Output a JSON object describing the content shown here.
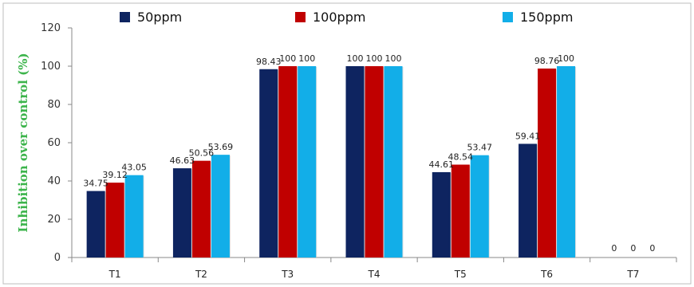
{
  "chart_data": {
    "type": "bar",
    "categories": [
      "T1",
      "T2",
      "T3",
      "T4",
      "T5",
      "T6",
      "T7"
    ],
    "series": [
      {
        "name": "50ppm",
        "values": [
          34.75,
          46.63,
          98.43,
          100,
          44.61,
          59.41,
          0
        ],
        "labels": [
          "34.75",
          "46.63",
          "98.43",
          "100",
          "44.61",
          "59.41",
          "0"
        ],
        "color": "#0e2460"
      },
      {
        "name": "100ppm",
        "values": [
          39.12,
          50.56,
          100,
          100,
          48.54,
          98.76,
          0
        ],
        "labels": [
          "39.12",
          "50.56",
          "100",
          "100",
          "48.54",
          "98.76",
          "0"
        ],
        "color": "#c00000"
      },
      {
        "name": "150ppm",
        "values": [
          43.05,
          53.69,
          100,
          100,
          53.47,
          100,
          0
        ],
        "labels": [
          "43.05",
          "53.69",
          "100",
          "100",
          "53.47",
          "100",
          "0"
        ],
        "color": "#12aee8"
      }
    ],
    "ylabel": "Inhibition over control (%)",
    "ylabel_color": "#3cb44b",
    "ylim": [
      0,
      120
    ],
    "yticks": [
      "0",
      "20",
      "40",
      "60",
      "80",
      "100",
      "120"
    ],
    "grid": false,
    "legend_position": "top"
  }
}
